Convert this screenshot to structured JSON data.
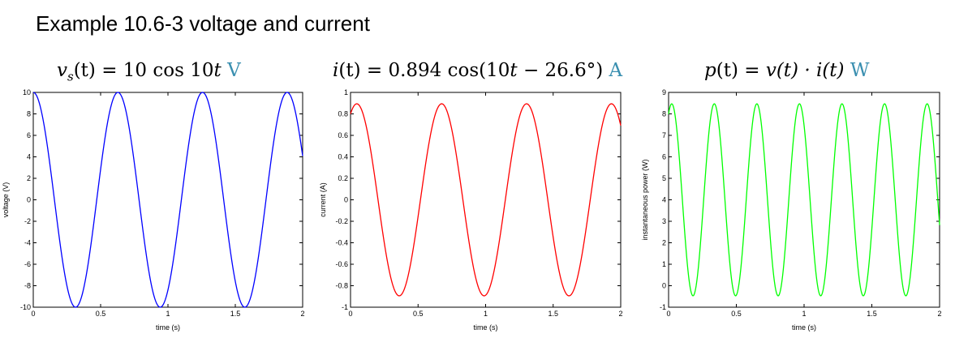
{
  "slide": {
    "title": "Example 10.6-3 voltage and current"
  },
  "plot_titles": [
    {
      "lhs": "v",
      "sub": "s",
      "args": "(t)",
      "eq": " = 10 cos 10",
      "tvar": "t",
      "unit": "V"
    },
    {
      "lhs": "i",
      "args": "(t)",
      "eq": " = 0.894 cos(10",
      "tvar": "t",
      "tail": " − 26.6°)",
      "unit": "A"
    },
    {
      "lhs": "p",
      "args": "(t)",
      "eq": " = ",
      "rhs": "v(t) · i(t)",
      "unit": "W"
    }
  ],
  "chart_data": [
    {
      "type": "line",
      "xlabel": "time (s)",
      "ylabel": "voltage (V)",
      "xlim": [
        0,
        2
      ],
      "ylim": [
        -10,
        10
      ],
      "xticks": [
        0,
        0.5,
        1,
        1.5,
        2
      ],
      "yticks": [
        -10,
        -8,
        -6,
        -4,
        -2,
        0,
        2,
        4,
        6,
        8,
        10
      ],
      "color": "#0000ff",
      "function": {
        "form": "A*cos(w*t+phi)+c",
        "A": 10,
        "w": 10,
        "phi_deg": 0,
        "c": 0
      }
    },
    {
      "type": "line",
      "xlabel": "time (s)",
      "ylabel": "current (A)",
      "xlim": [
        0,
        2
      ],
      "ylim": [
        -1,
        1
      ],
      "xticks": [
        0,
        0.5,
        1,
        1.5,
        2
      ],
      "yticks": [
        -1,
        -0.8,
        -0.6,
        -0.4,
        -0.2,
        0,
        0.2,
        0.4,
        0.6,
        0.8,
        1
      ],
      "color": "#ff0000",
      "function": {
        "form": "A*cos(w*t+phi)+c",
        "A": 0.894,
        "w": 10,
        "phi_deg": -26.6,
        "c": 0
      }
    },
    {
      "type": "line",
      "xlabel": "time (s)",
      "ylabel": "instantaneous power (W)",
      "xlim": [
        0,
        2
      ],
      "ylim": [
        -1,
        9
      ],
      "xticks": [
        0,
        0.5,
        1,
        1.5,
        2
      ],
      "yticks": [
        -1,
        0,
        1,
        2,
        3,
        4,
        5,
        6,
        7,
        8,
        9
      ],
      "color": "#00ff00",
      "function": {
        "form": "A*cos(w*t+phi)+c",
        "A": 4.47,
        "w": 20,
        "phi_deg": -26.6,
        "c": 4.0
      }
    }
  ]
}
